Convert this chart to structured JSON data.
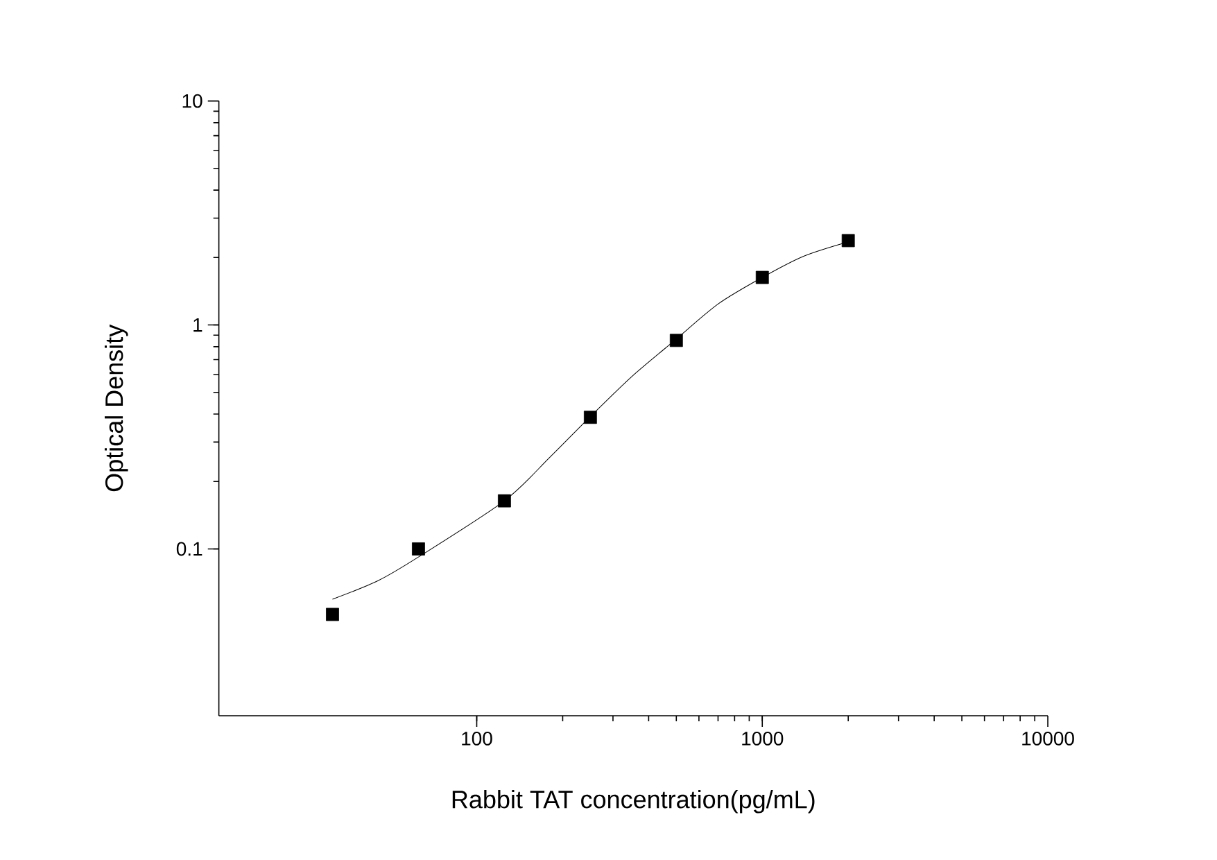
{
  "chart_data": {
    "type": "scatter",
    "xlabel": "Rabbit TAT concentration(pg/mL)",
    "ylabel": "Optical Density",
    "log": "xy",
    "xlim": [
      12.5,
      10000
    ],
    "ylim": [
      0.018,
      10
    ],
    "xticks": [
      100,
      1000,
      10000
    ],
    "yticks": [
      0.1,
      1,
      10
    ],
    "series": [
      {
        "marker": "square",
        "color": "#000000",
        "x": [
          31.25,
          62.5,
          125,
          250,
          500,
          1000,
          2000
        ],
        "values": [
          0.051,
          0.1,
          0.164,
          0.387,
          0.853,
          1.63,
          2.38
        ]
      },
      {
        "type": "line",
        "marker": "none",
        "line_style": "solid",
        "color": "#000000",
        "x": [
          31.25,
          45,
          62.5,
          125,
          180,
          250,
          350,
          500,
          700,
          1000,
          1400,
          2000
        ],
        "values": [
          0.0596,
          0.072,
          0.092,
          0.164,
          0.256,
          0.39,
          0.59,
          0.865,
          1.24,
          1.63,
          2.03,
          2.35
        ]
      }
    ]
  }
}
